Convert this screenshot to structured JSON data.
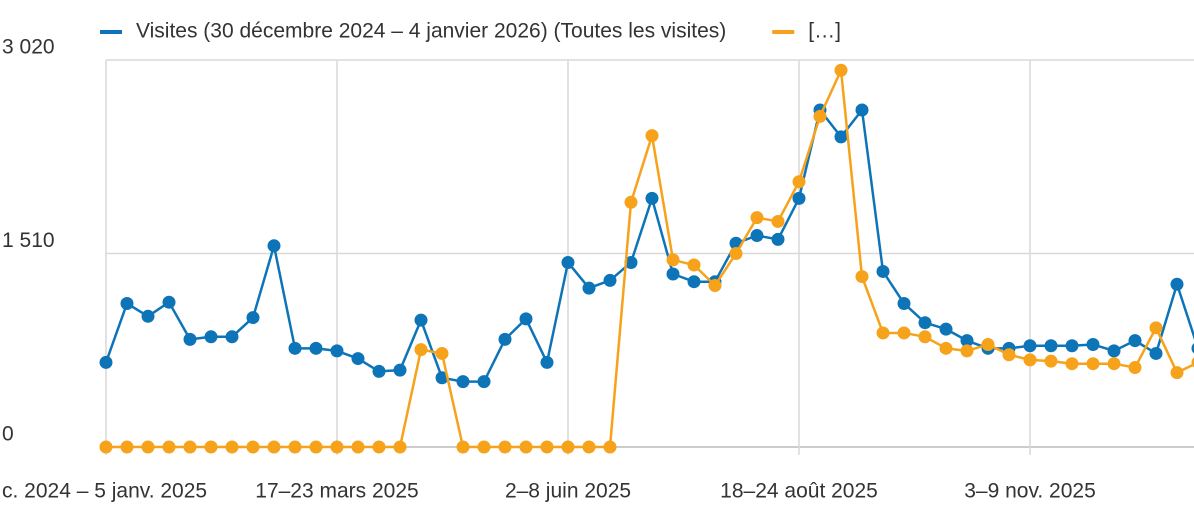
{
  "chart_data": {
    "type": "line",
    "categories": [
      "c. 2024 – 5 janv. 2025",
      null,
      null,
      null,
      null,
      null,
      null,
      null,
      null,
      null,
      null,
      "17–23 mars 2025",
      null,
      null,
      null,
      null,
      null,
      null,
      null,
      null,
      null,
      null,
      "2–8 juin 2025",
      null,
      null,
      null,
      null,
      null,
      null,
      null,
      null,
      null,
      null,
      "18–24 août 2025",
      null,
      null,
      null,
      null,
      null,
      null,
      null,
      null,
      null,
      null,
      "3–9 nov. 2025",
      null,
      null,
      null,
      null,
      null,
      null,
      null,
      null
    ],
    "series": [
      {
        "name": "Visites (30 décembre 2024 – 4 janvier 2026) (Toutes les visites)",
        "color": "#0e74b8",
        "values": [
          660,
          1120,
          1020,
          1130,
          840,
          860,
          860,
          1010,
          1570,
          770,
          770,
          750,
          690,
          590,
          600,
          990,
          540,
          510,
          510,
          840,
          1000,
          660,
          1440,
          1240,
          1300,
          1440,
          1940,
          1350,
          1290,
          1290,
          1590,
          1650,
          1620,
          1940,
          2630,
          2420,
          2630,
          1370,
          1120,
          970,
          920,
          830,
          770,
          770,
          790,
          790,
          790,
          800,
          750,
          830,
          730,
          1270,
          770
        ]
      },
      {
        "name": "[…]",
        "color": "#f7a21b",
        "values": [
          0,
          0,
          0,
          0,
          0,
          0,
          0,
          0,
          0,
          0,
          0,
          0,
          0,
          0,
          0,
          760,
          730,
          0,
          0,
          0,
          0,
          0,
          0,
          0,
          0,
          1910,
          2430,
          1460,
          1420,
          1260,
          1510,
          1790,
          1760,
          2070,
          2580,
          2940,
          1330,
          890,
          890,
          860,
          770,
          750,
          800,
          720,
          680,
          670,
          650,
          650,
          650,
          620,
          930,
          580,
          660
        ]
      }
    ],
    "ylim": [
      0,
      3020
    ],
    "yticks": [
      0,
      {
        "value": 1510,
        "label": "1 510"
      },
      {
        "value": 3020,
        "label": "3 020"
      }
    ],
    "grid": true
  }
}
